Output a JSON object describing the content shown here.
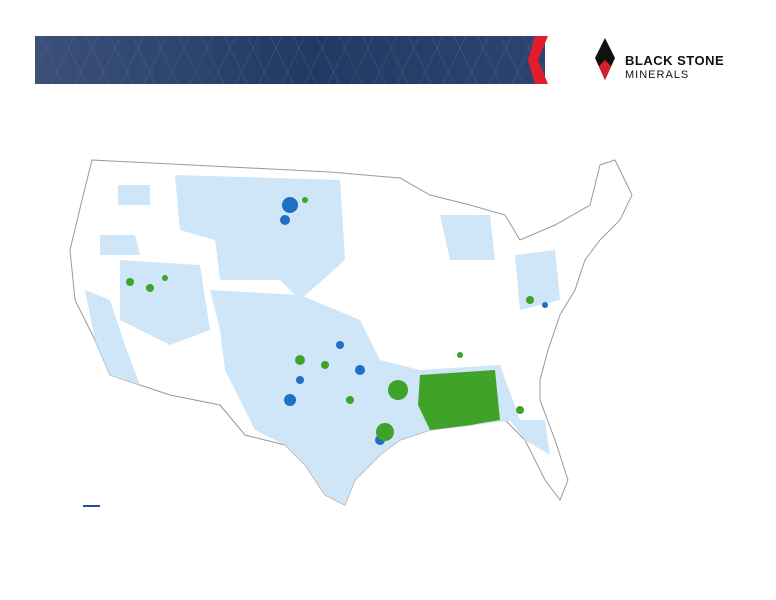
{
  "logo": {
    "name": "BLACK STONE",
    "subtitle": "MINERALS"
  }
}
